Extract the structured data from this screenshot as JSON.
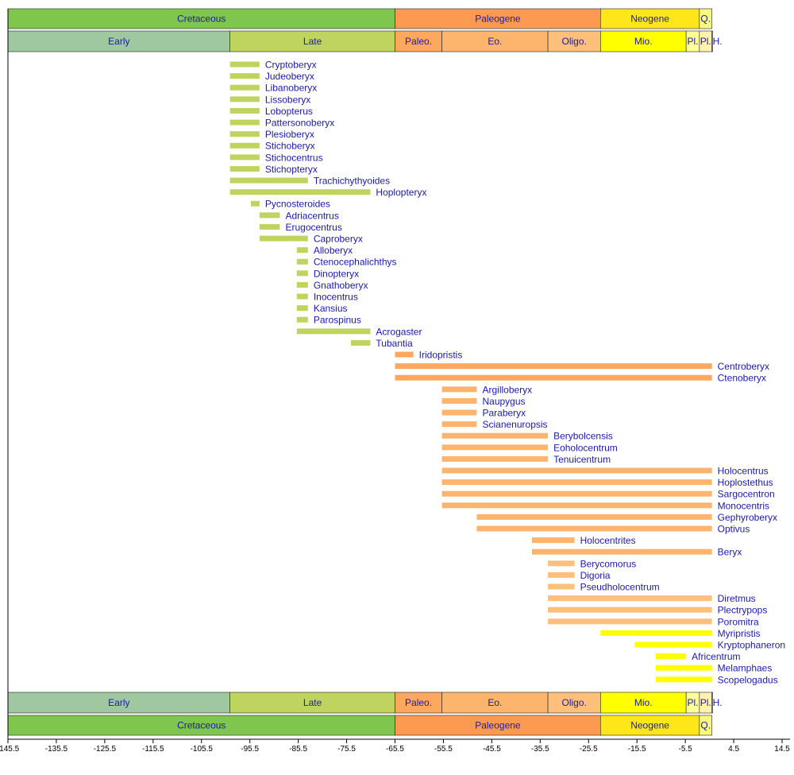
{
  "chart_data": {
    "type": "timeline",
    "x_range": [
      -145.5,
      14.5
    ],
    "x_ticks": [
      "-145.5",
      "-135.5",
      "-125.5",
      "-115.5",
      "-105.5",
      "-95.5",
      "-85.5",
      "-75.5",
      "-65.5",
      "-55.5",
      "-45.5",
      "-35.5",
      "-25.5",
      "-15.5",
      "-5.5",
      "4.5",
      "14.5"
    ],
    "periods": [
      {
        "label": "Cretaceous",
        "start": -145.5,
        "end": -65.5,
        "color": "#7fc64e"
      },
      {
        "label": "Paleogene",
        "start": -65.5,
        "end": -23.03,
        "color": "#fd9a52"
      },
      {
        "label": "Neogene",
        "start": -23.03,
        "end": -2.59,
        "color": "#ffe619"
      },
      {
        "label": "Q.",
        "start": -2.59,
        "end": 0,
        "color": "#f9f97f"
      }
    ],
    "epochs": [
      {
        "label": "Early",
        "start": -145.5,
        "end": -99.6,
        "color": "#a0c8a0"
      },
      {
        "label": "Late",
        "start": -99.6,
        "end": -65.5,
        "color": "#bfd45f"
      },
      {
        "label": "Paleo.",
        "start": -65.5,
        "end": -55.8,
        "color": "#fda75f"
      },
      {
        "label": "Eo.",
        "start": -55.8,
        "end": -33.9,
        "color": "#fdb46c"
      },
      {
        "label": "Oligo.",
        "start": -33.9,
        "end": -23.03,
        "color": "#fdc07a"
      },
      {
        "label": "Mio.",
        "start": -23.03,
        "end": -5.33,
        "color": "#ffff00"
      },
      {
        "label": "Pl.",
        "start": -5.33,
        "end": -2.59,
        "color": "#ffff99"
      },
      {
        "label": "Pl.",
        "start": -2.59,
        "end": -0.01,
        "color": "#fff2ae"
      },
      {
        "label": "H.",
        "start": -0.01,
        "end": 0,
        "color": "#fef2e0"
      }
    ],
    "taxa": [
      {
        "name": "Cryptoberyx",
        "start": -99.6,
        "end": -93.5,
        "color": "#bfd45f"
      },
      {
        "name": "Judeoberyx",
        "start": -99.6,
        "end": -93.5,
        "color": "#bfd45f"
      },
      {
        "name": "Libanoberyx",
        "start": -99.6,
        "end": -93.5,
        "color": "#bfd45f"
      },
      {
        "name": "Lissoberyx",
        "start": -99.6,
        "end": -93.5,
        "color": "#bfd45f"
      },
      {
        "name": "Lobopterus",
        "start": -99.6,
        "end": -93.5,
        "color": "#bfd45f"
      },
      {
        "name": "Pattersonoberyx",
        "start": -99.6,
        "end": -93.5,
        "color": "#bfd45f"
      },
      {
        "name": "Plesioberyx",
        "start": -99.6,
        "end": -93.5,
        "color": "#bfd45f"
      },
      {
        "name": "Stichoberyx",
        "start": -99.6,
        "end": -93.5,
        "color": "#bfd45f"
      },
      {
        "name": "Stichocentrus",
        "start": -99.6,
        "end": -93.5,
        "color": "#bfd45f"
      },
      {
        "name": "Stichopteryx",
        "start": -99.6,
        "end": -93.5,
        "color": "#bfd45f"
      },
      {
        "name": "Trachichythyoides",
        "start": -99.6,
        "end": -83.5,
        "color": "#bfd45f"
      },
      {
        "name": "Hoplopteryx",
        "start": -99.6,
        "end": -70.6,
        "color": "#bfd45f"
      },
      {
        "name": "Pycnosteroides",
        "start": -95.3,
        "end": -93.5,
        "color": "#bfd45f"
      },
      {
        "name": "Adriacentrus",
        "start": -93.5,
        "end": -89.3,
        "color": "#bfd45f"
      },
      {
        "name": "Erugocentrus",
        "start": -93.5,
        "end": -89.3,
        "color": "#bfd45f"
      },
      {
        "name": "Caproberyx",
        "start": -93.5,
        "end": -83.5,
        "color": "#bfd45f"
      },
      {
        "name": "Alloberyx",
        "start": -85.8,
        "end": -83.5,
        "color": "#bfd45f"
      },
      {
        "name": "Ctenocephalichthys",
        "start": -85.8,
        "end": -83.5,
        "color": "#bfd45f"
      },
      {
        "name": "Dinopteryx",
        "start": -85.8,
        "end": -83.5,
        "color": "#bfd45f"
      },
      {
        "name": "Gnathoberyx",
        "start": -85.8,
        "end": -83.5,
        "color": "#bfd45f"
      },
      {
        "name": "Inocentrus",
        "start": -85.8,
        "end": -83.5,
        "color": "#bfd45f"
      },
      {
        "name": "Kansius",
        "start": -85.8,
        "end": -83.5,
        "color": "#bfd45f"
      },
      {
        "name": "Parospinus",
        "start": -85.8,
        "end": -83.5,
        "color": "#bfd45f"
      },
      {
        "name": "Acrogaster",
        "start": -85.8,
        "end": -70.6,
        "color": "#bfd45f"
      },
      {
        "name": "Tubantia",
        "start": -74.6,
        "end": -70.6,
        "color": "#bfd45f"
      },
      {
        "name": "Iridopristis",
        "start": -65.5,
        "end": -61.7,
        "color": "#fda75f"
      },
      {
        "name": "Centroberyx",
        "start": -65.5,
        "end": 0,
        "color": "#fda75f"
      },
      {
        "name": "Ctenoberyx",
        "start": -65.5,
        "end": 0,
        "color": "#fda75f"
      },
      {
        "name": "Argilloberyx",
        "start": -55.8,
        "end": -48.6,
        "color": "#fdb46c"
      },
      {
        "name": "Naupygus",
        "start": -55.8,
        "end": -48.6,
        "color": "#fdb46c"
      },
      {
        "name": "Paraberyx",
        "start": -55.8,
        "end": -48.6,
        "color": "#fdb46c"
      },
      {
        "name": "Scianenuropsis",
        "start": -55.8,
        "end": -48.6,
        "color": "#fdb46c"
      },
      {
        "name": "Berybolcensis",
        "start": -55.8,
        "end": -33.9,
        "color": "#fdb46c"
      },
      {
        "name": "Eoholocentrum",
        "start": -55.8,
        "end": -33.9,
        "color": "#fdb46c"
      },
      {
        "name": "Tenuicentrum",
        "start": -55.8,
        "end": -33.9,
        "color": "#fdb46c"
      },
      {
        "name": "Holocentrus",
        "start": -55.8,
        "end": 0,
        "color": "#fdb46c"
      },
      {
        "name": "Hoplostethus",
        "start": -55.8,
        "end": 0,
        "color": "#fdb46c"
      },
      {
        "name": "Sargocentron",
        "start": -55.8,
        "end": 0,
        "color": "#fdb46c"
      },
      {
        "name": "Monocentris",
        "start": -55.8,
        "end": 0,
        "color": "#fdb46c"
      },
      {
        "name": "Gephyroberyx",
        "start": -48.6,
        "end": 0,
        "color": "#fdb46c"
      },
      {
        "name": "Optivus",
        "start": -48.6,
        "end": 0,
        "color": "#fdb46c"
      },
      {
        "name": "Holocentrites",
        "start": -37.2,
        "end": -28.4,
        "color": "#fdb46c"
      },
      {
        "name": "Beryx",
        "start": -37.2,
        "end": 0,
        "color": "#fdb46c"
      },
      {
        "name": "Berycomorus",
        "start": -33.9,
        "end": -28.4,
        "color": "#fdc07a"
      },
      {
        "name": "Digoria",
        "start": -33.9,
        "end": -28.4,
        "color": "#fdc07a"
      },
      {
        "name": "Pseudholocentrum",
        "start": -33.9,
        "end": -28.4,
        "color": "#fdc07a"
      },
      {
        "name": "Diretmus",
        "start": -33.9,
        "end": 0,
        "color": "#fdc07a"
      },
      {
        "name": "Plectrypops",
        "start": -33.9,
        "end": 0,
        "color": "#fdc07a"
      },
      {
        "name": "Poromitra",
        "start": -33.9,
        "end": 0,
        "color": "#fdc07a"
      },
      {
        "name": "Myripristis",
        "start": -23.03,
        "end": 0,
        "color": "#ffff00"
      },
      {
        "name": "Kryptophaneron",
        "start": -15.97,
        "end": 0,
        "color": "#ffff00"
      },
      {
        "name": "Africentrum",
        "start": -11.6,
        "end": -5.33,
        "color": "#ffff00"
      },
      {
        "name": "Melamphaes",
        "start": -11.6,
        "end": 0,
        "color": "#ffff00"
      },
      {
        "name": "Scopelogadus",
        "start": -11.6,
        "end": 0,
        "color": "#ffff00"
      }
    ],
    "label_color": "#1a1aa8",
    "grid": false
  }
}
